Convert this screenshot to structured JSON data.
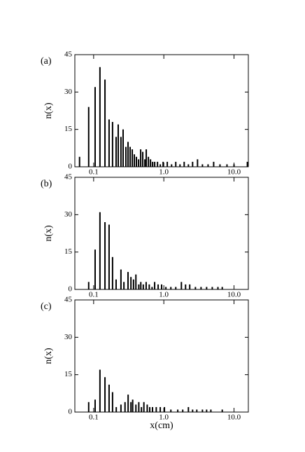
{
  "chart_data": [
    {
      "type": "bar",
      "label": "(a)",
      "ylabel": "n(x)",
      "xscale": "log",
      "color": "#000000",
      "xlim": [
        0.054,
        16
      ],
      "ylim": [
        0,
        45
      ],
      "yticks": [
        0,
        15,
        30,
        45
      ],
      "xticks": [
        0.1,
        {
          "value": 1,
          "label": "1.0"
        },
        {
          "value": 10,
          "label": "10.0"
        }
      ],
      "x": [
        0.063,
        0.085,
        0.105,
        0.123,
        0.145,
        0.166,
        0.186,
        0.209,
        0.224,
        0.245,
        0.263,
        0.288,
        0.309,
        0.331,
        0.355,
        0.38,
        0.407,
        0.437,
        0.468,
        0.501,
        0.537,
        0.562,
        0.603,
        0.646,
        0.692,
        0.741,
        0.813,
        0.891,
        0.977,
        1.12,
        1.29,
        1.48,
        1.7,
        1.95,
        2.24,
        2.57,
        3.02,
        3.55,
        4.27,
        5.13,
        6.31,
        7.94,
        10.0,
        15.5
      ],
      "values": [
        4,
        24,
        32,
        40,
        35,
        19,
        18,
        12,
        17,
        12,
        15,
        8,
        10,
        8,
        7,
        5,
        4,
        3,
        7,
        6,
        3,
        7,
        4,
        3,
        2,
        2,
        2,
        1,
        2,
        2,
        1,
        2,
        1,
        2,
        1,
        2,
        3,
        1,
        1,
        2,
        1,
        1,
        1,
        2
      ]
    },
    {
      "type": "bar",
      "label": "(b)",
      "ylabel": "n(x)",
      "xscale": "log",
      "color": "#000000",
      "xlim": [
        0.054,
        16
      ],
      "ylim": [
        0,
        45
      ],
      "yticks": [
        0,
        15,
        30,
        45
      ],
      "xticks": [
        0.1,
        {
          "value": 1,
          "label": "1.0"
        },
        {
          "value": 10,
          "label": "10.0"
        }
      ],
      "x": [
        0.085,
        0.105,
        0.123,
        0.145,
        0.166,
        0.186,
        0.209,
        0.245,
        0.27,
        0.309,
        0.34,
        0.37,
        0.4,
        0.44,
        0.47,
        0.51,
        0.56,
        0.62,
        0.68,
        0.74,
        0.83,
        0.93,
        1.07,
        1.26,
        1.48,
        1.78,
        2.04,
        2.34,
        2.82,
        3.39,
        4.07,
        4.9,
        5.9,
        6.8
      ],
      "values": [
        3,
        16,
        31,
        27,
        26,
        13,
        4,
        8,
        3,
        7,
        5,
        4,
        6,
        2,
        3,
        2,
        3,
        2,
        1,
        3,
        2,
        2,
        1,
        1,
        1,
        3,
        2,
        2,
        1,
        1,
        1,
        1,
        1,
        1
      ]
    },
    {
      "type": "bar",
      "label": "(c)",
      "ylabel": "n(x)",
      "xlabel": "x(cm)",
      "xscale": "log",
      "color": "#000000",
      "xlim": [
        0.054,
        16
      ],
      "ylim": [
        0,
        45
      ],
      "yticks": [
        0,
        15,
        30,
        45
      ],
      "xticks": [
        0.1,
        {
          "value": 1,
          "label": "1.0"
        },
        {
          "value": 10,
          "label": "10.0"
        }
      ],
      "x": [
        0.085,
        0.105,
        0.123,
        0.145,
        0.166,
        0.186,
        0.21,
        0.245,
        0.28,
        0.31,
        0.34,
        0.36,
        0.4,
        0.44,
        0.48,
        0.52,
        0.58,
        0.63,
        0.69,
        0.78,
        0.89,
        1.02,
        1.26,
        1.58,
        1.86,
        2.24,
        2.57,
        2.95,
        3.55,
        4.07,
        4.68,
        6.8
      ],
      "values": [
        4,
        5,
        17,
        14,
        11,
        8,
        2,
        3,
        4,
        7,
        4,
        5,
        3,
        4,
        2,
        4,
        3,
        2,
        2,
        2,
        2,
        2,
        1,
        1,
        1,
        2,
        1,
        1,
        1,
        1,
        1,
        1
      ]
    }
  ]
}
